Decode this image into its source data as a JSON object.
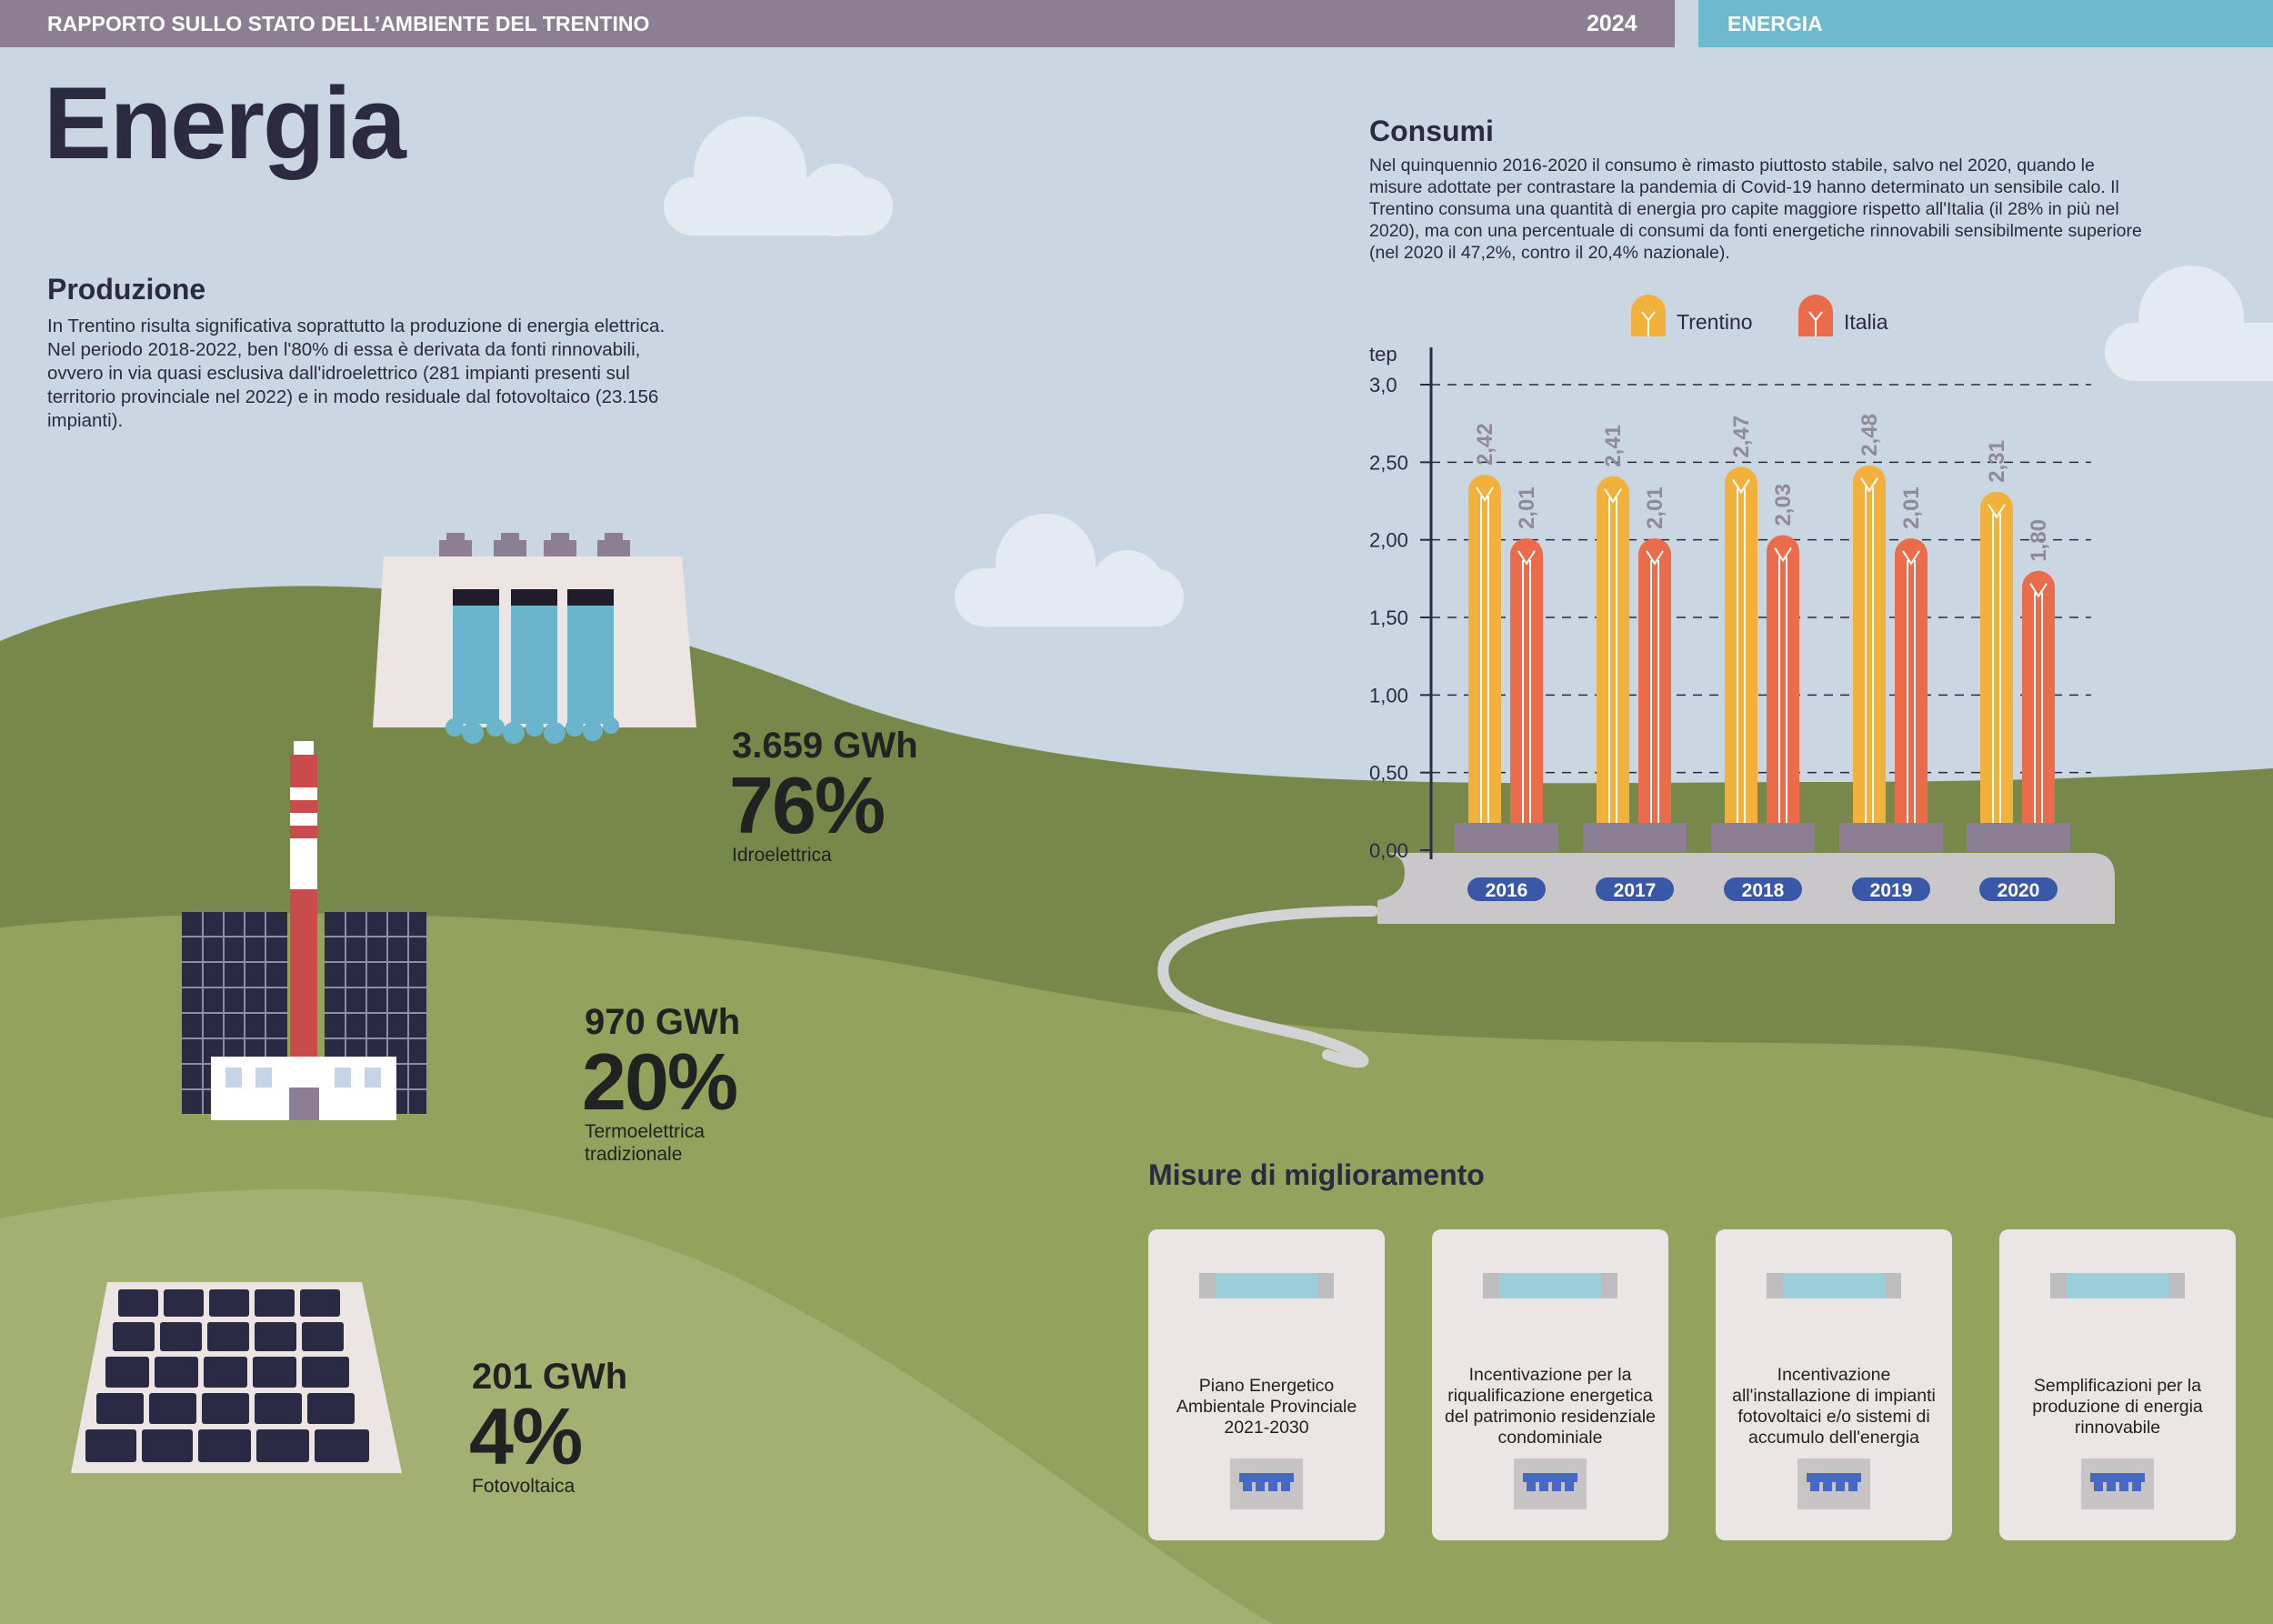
{
  "header": {
    "report_title": "RAPPORTO SULLO STATO DELL’AMBIENTE DEL TRENTINO",
    "year": "2024",
    "section": "ENERGIA"
  },
  "page_title": "Energia",
  "produzione": {
    "heading": "Produzione",
    "text": "In Trentino risulta significativa soprattutto la produzione di energia elettrica. Nel periodo 2018-2022, ben l'80% di essa è derivata da fonti rinnovabili, ovvero in via quasi esclusiva dall'idroelettrico (281 impianti presenti sul territorio provinciale nel 2022) e in modo residuale dal fotovoltaico (23.156 impianti).",
    "items": [
      {
        "gwh": "3.659 GWh",
        "pct": "76%",
        "label": "Idroelettrica"
      },
      {
        "gwh": "970 GWh",
        "pct": "20%",
        "label": "Termoelettrica tradizionale"
      },
      {
        "gwh": "201 GWh",
        "pct": "4%",
        "label": "Fotovoltaica"
      }
    ]
  },
  "consumi": {
    "heading": "Consumi",
    "text": "Nel quinquennio 2016-2020 il consumo è rimasto piuttosto stabile, salvo nel 2020, quando le misure adottate per contrastare la pandemia di Covid-19 hanno determinato un sensibile calo. Il Trentino consuma una quantità di energia pro capite maggiore rispetto all'Italia (il 28% in più nel 2020), ma con una percentuale di consumi da fonti energetiche rinnovabili sensibilmente superiore (nel 2020 il 47,2%, contro il 20,4% nazionale)."
  },
  "chart_data": {
    "type": "bar",
    "ylabel": "tep",
    "ylim": [
      0,
      3.0
    ],
    "yticks": [
      "0,00",
      "0,50",
      "1,00",
      "1,50",
      "2,00",
      "2,50",
      "3,0"
    ],
    "ytick_values": [
      0,
      0.5,
      1.0,
      1.5,
      2.0,
      2.5,
      3.0
    ],
    "categories": [
      "2016",
      "2017",
      "2018",
      "2019",
      "2020"
    ],
    "series": [
      {
        "name": "Trentino",
        "color": "#f2b13a",
        "values": [
          2.42,
          2.41,
          2.47,
          2.48,
          2.31
        ],
        "labels": [
          "2,42",
          "2,41",
          "2,47",
          "2,48",
          "2,31"
        ]
      },
      {
        "name": "Italia",
        "color": "#ea6c4a",
        "values": [
          2.01,
          2.01,
          2.03,
          2.01,
          1.8
        ],
        "labels": [
          "2,01",
          "2,01",
          "2,03",
          "2,01",
          "1,80"
        ]
      }
    ],
    "grid": true,
    "legend": "top"
  },
  "misure": {
    "heading": "Misure di miglioramento",
    "cards": [
      "Piano Energetico Ambientale Provinciale 2021-2030",
      "Incentivazione per la riqualificazione energetica del patrimonio residenziale condominiale",
      "Incentivazione all'installazione di impianti fotovoltaici e/o sistemi di accumulo dell'energia",
      "Semplificazioni per la produzione di energia rinnovabile"
    ]
  },
  "colors": {
    "sky": "#cbd6e3",
    "hill_dark": "#78884a",
    "hill_mid": "#93a25c",
    "hill_light": "#a3b072",
    "header": "#8c7f93",
    "section": "#6fb9cf",
    "year_pill": "#3a58a8"
  }
}
